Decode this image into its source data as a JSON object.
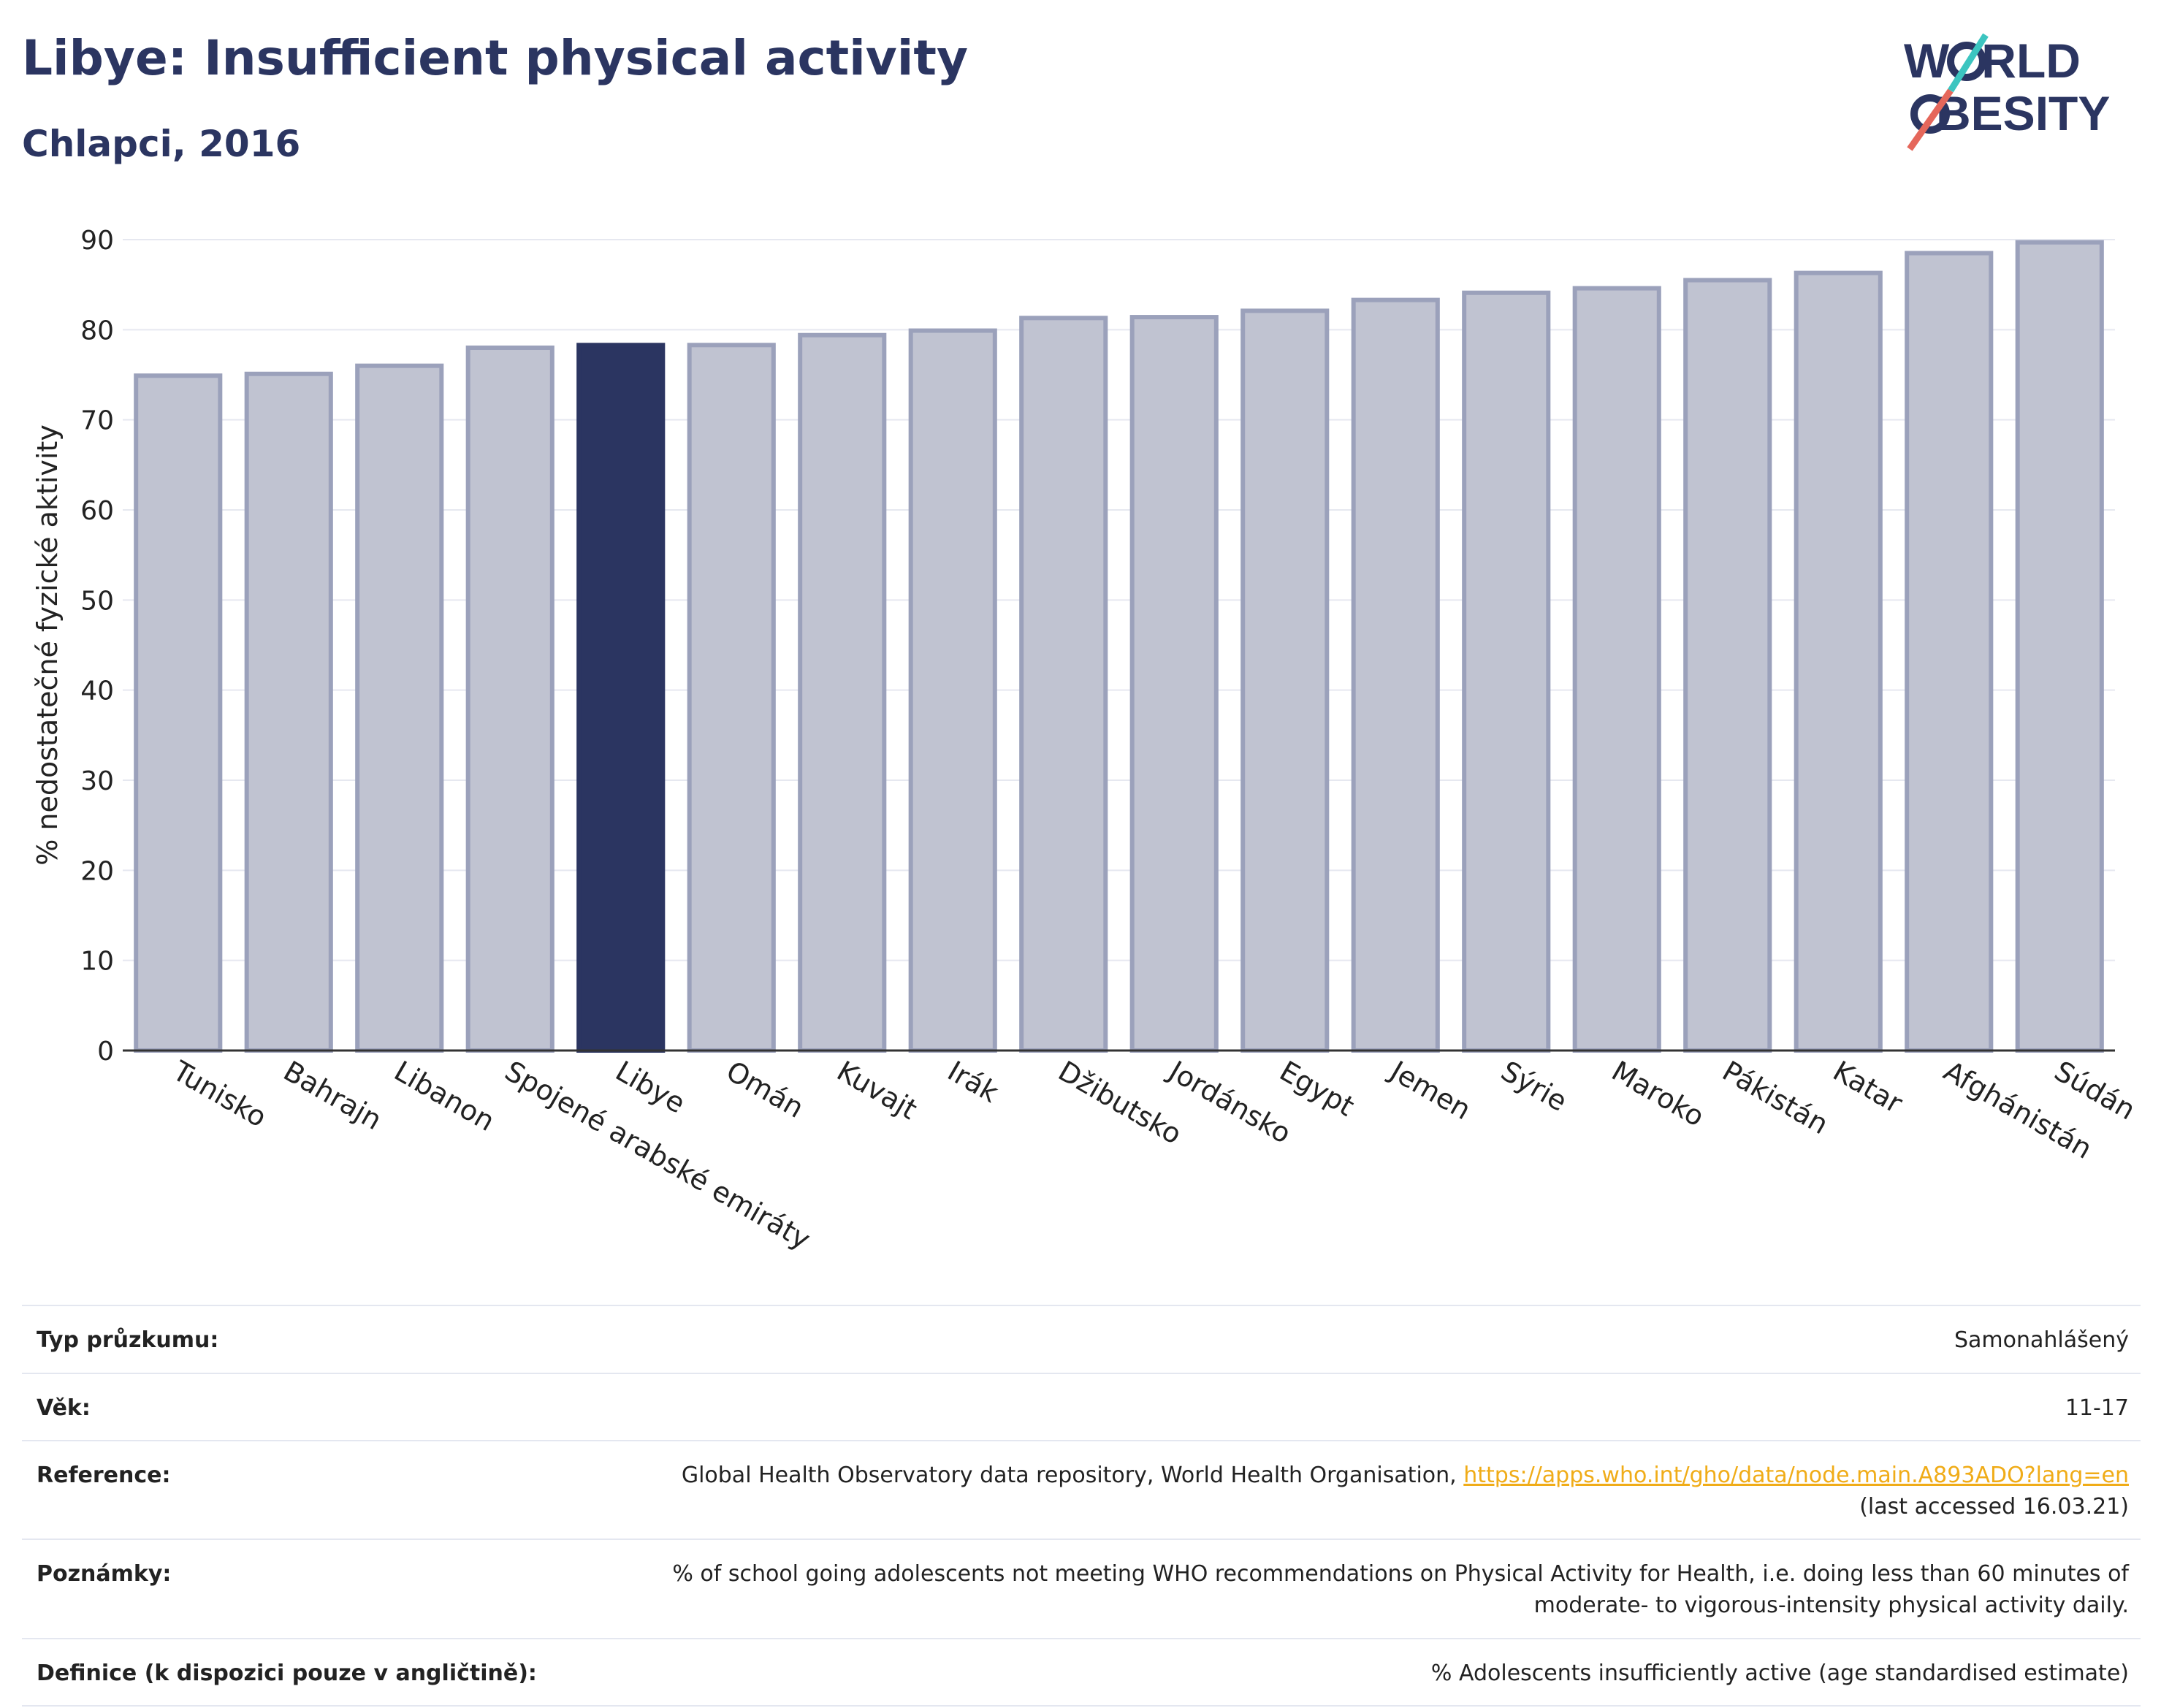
{
  "header": {
    "title": "Libye: Insufficient physical activity",
    "subtitle": "Chlapci, 2016"
  },
  "logo": {
    "line1_part1": "W",
    "line1_part2": "RLD",
    "line2_part1": "O",
    "line2_part2": "BESITY"
  },
  "colors": {
    "highlight": "#2b3561",
    "bar_fill": "#c0c3d1",
    "bar_stroke": "#9ba1bb",
    "brand_navy": "#2b3561",
    "brand_teal": "#3cc5c0",
    "brand_coral": "#e5675b",
    "link": "#f0ac18"
  },
  "chart_data": {
    "type": "bar",
    "title": "",
    "xlabel": "",
    "ylabel": "% nedostatečné fyzické aktivity",
    "ylim": [
      0,
      90
    ],
    "yticks": [
      0,
      10,
      20,
      30,
      40,
      50,
      60,
      70,
      80,
      90
    ],
    "grid": true,
    "categories": [
      "Tunisko",
      "Bahrajn",
      "Libanon",
      "Spojené arabské emiráty",
      "Libye",
      "Omán",
      "Kuvajt",
      "Irák",
      "Džibutsko",
      "Jordánsko",
      "Egypt",
      "Jemen",
      "Sýrie",
      "Maroko",
      "Pákistán",
      "Katar",
      "Afghánistán",
      "Súdán"
    ],
    "values": [
      74.9,
      75.1,
      76.0,
      78.0,
      78.3,
      78.3,
      79.4,
      79.9,
      81.3,
      81.4,
      82.1,
      83.3,
      84.1,
      84.6,
      85.5,
      86.3,
      88.5,
      89.7
    ],
    "highlighted": "Libye"
  },
  "info": {
    "rows": [
      {
        "label": "Typ průzkumu:",
        "value": "Samonahlášený"
      },
      {
        "label": "Věk:",
        "value": "11-17"
      },
      {
        "label": "Reference:",
        "value": "Global Health Observatory data repository, World Health Organisation,",
        "link": "https://apps.who.int/gho/data/node.main.A893ADO?lang=en",
        "value2": "(last accessed 16.03.21)"
      },
      {
        "label": "Poznámky:",
        "value": "% of school going adolescents not meeting WHO recommendations on Physical Activity for Health, i.e. doing less than 60 minutes of",
        "value2": "moderate- to vigorous-intensity physical activity daily."
      },
      {
        "label": "Definice (k dispozici pouze v angličtině):",
        "value": "% Adolescents insufficiently active (age standardised estimate)"
      }
    ]
  }
}
